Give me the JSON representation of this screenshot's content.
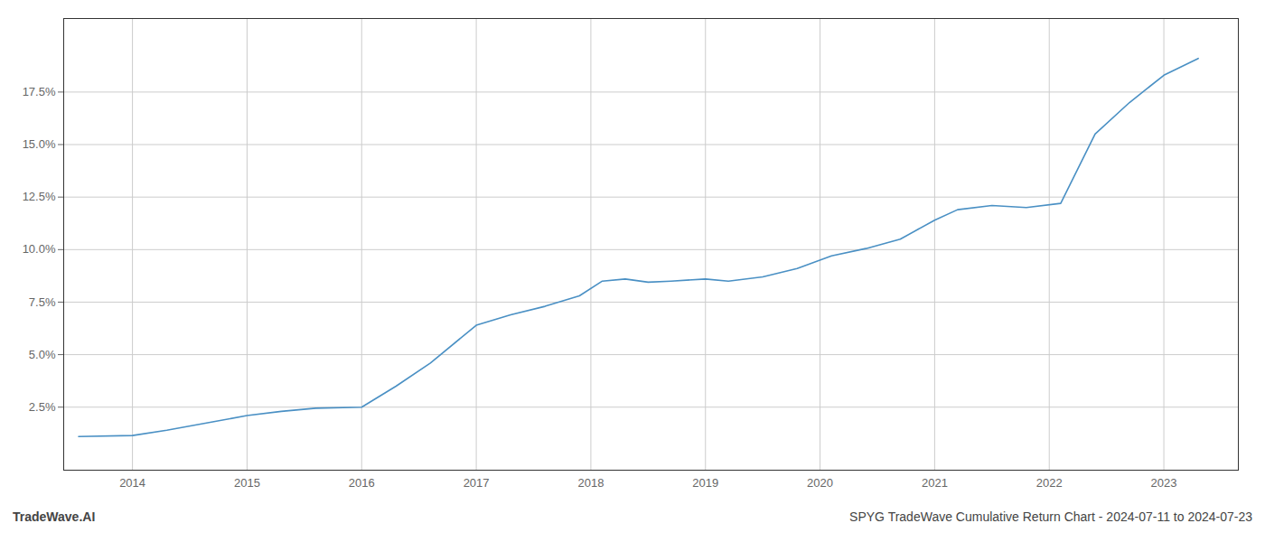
{
  "chart_data": {
    "type": "line",
    "x": [
      2013.53,
      2014.0,
      2014.3,
      2014.7,
      2015.0,
      2015.3,
      2015.6,
      2016.0,
      2016.3,
      2016.6,
      2017.0,
      2017.3,
      2017.6,
      2017.9,
      2018.1,
      2018.3,
      2018.5,
      2018.7,
      2019.0,
      2019.2,
      2019.5,
      2019.8,
      2020.1,
      2020.4,
      2020.7,
      2021.0,
      2021.2,
      2021.5,
      2021.8,
      2022.1,
      2022.4,
      2022.7,
      2023.0,
      2023.3
    ],
    "values": [
      1.1,
      1.15,
      1.4,
      1.8,
      2.1,
      2.3,
      2.45,
      2.5,
      3.5,
      4.6,
      6.4,
      6.9,
      7.3,
      7.8,
      8.5,
      8.6,
      8.45,
      8.5,
      8.6,
      8.5,
      8.7,
      9.1,
      9.7,
      10.05,
      10.5,
      11.4,
      11.9,
      12.1,
      12.0,
      12.2,
      15.5,
      17.0,
      18.3,
      19.1
    ],
    "color": "#4a90c4",
    "xlim": [
      2013.4,
      2023.65
    ],
    "xticks": [
      2014,
      2015,
      2016,
      2017,
      2018,
      2019,
      2020,
      2021,
      2022,
      2023
    ],
    "ylim": [
      -0.5,
      21.0
    ],
    "yticks": [
      {
        "value": 2.5,
        "label": "2.5%"
      },
      {
        "value": 5.0,
        "label": "5.0%"
      },
      {
        "value": 7.5,
        "label": "7.5%"
      },
      {
        "value": 10.0,
        "label": "10.0%"
      },
      {
        "value": 12.5,
        "label": "12.5%"
      },
      {
        "value": 15.0,
        "label": "15.0%"
      },
      {
        "value": 17.5,
        "label": "17.5%"
      }
    ],
    "grid": true,
    "annotations": [
      "TradeWave.AI",
      "SPYG TradeWave Cumulative Return Chart - 2024-07-11 to 2024-07-23"
    ]
  }
}
